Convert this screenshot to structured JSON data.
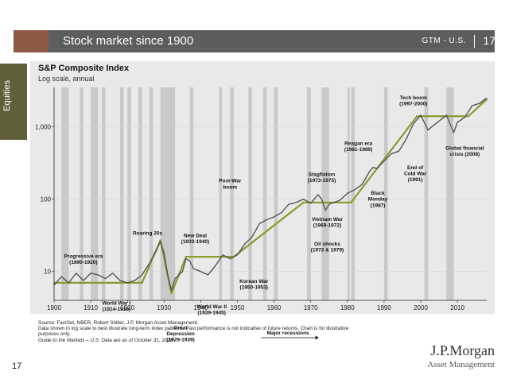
{
  "header": {
    "title": "Stock market since 1900",
    "tag": "GTM - U.S.",
    "page": "17"
  },
  "sidebar": {
    "label": "Equities"
  },
  "colors": {
    "accent": "#8c5a45",
    "trend": "#8c9a2c",
    "index_line": "#555555",
    "recession": "#c9c9c9",
    "panel": "#e9e9e9"
  },
  "chart_data": {
    "type": "line",
    "title": "S&P Composite Index",
    "subtitle": "Log scale, annual",
    "xlabel": "",
    "ylabel": "",
    "xlim": [
      1900,
      2018
    ],
    "ylim": [
      4,
      3500
    ],
    "yscale": "log",
    "xticks": [
      1900,
      1910,
      1920,
      1930,
      1940,
      1950,
      1960,
      1970,
      1980,
      1990,
      2000,
      2010
    ],
    "xtick_labels": [
      "1900",
      "1910",
      "1920",
      "1930",
      "1940",
      "1950",
      "1960",
      "1970",
      "1980",
      "1990",
      "2000",
      "2010"
    ],
    "yticks": [
      10,
      100,
      1000
    ],
    "ytick_labels": [
      "10",
      "100",
      "1,000"
    ],
    "recessions": [
      [
        1902,
        1904
      ],
      [
        1907,
        1908
      ],
      [
        1910,
        1912
      ],
      [
        1913,
        1914
      ],
      [
        1918,
        1919
      ],
      [
        1920,
        1921
      ],
      [
        1923,
        1924
      ],
      [
        1926,
        1927
      ],
      [
        1929,
        1933
      ],
      [
        1937,
        1938
      ],
      [
        1945,
        1945.8
      ],
      [
        1948,
        1949
      ],
      [
        1953,
        1954
      ],
      [
        1957,
        1958
      ],
      [
        1960,
        1961
      ],
      [
        1969,
        1970
      ],
      [
        1973,
        1975
      ],
      [
        1980,
        1980.6
      ],
      [
        1981,
        1982
      ],
      [
        1990,
        1991
      ],
      [
        2001,
        2002
      ],
      [
        2007,
        2009
      ]
    ],
    "series": [
      {
        "name": "S&P Composite Index",
        "x": [
          1900,
          1902,
          1904,
          1906,
          1908,
          1910,
          1912,
          1914,
          1916,
          1918,
          1920,
          1922,
          1924,
          1926,
          1928,
          1929,
          1930,
          1931,
          1932,
          1933,
          1935,
          1936,
          1937,
          1938,
          1940,
          1942,
          1944,
          1946,
          1948,
          1950,
          1952,
          1954,
          1956,
          1958,
          1960,
          1962,
          1964,
          1966,
          1968,
          1970,
          1972,
          1973,
          1974,
          1975,
          1978,
          1980,
          1982,
          1984,
          1986,
          1987,
          1988,
          1990,
          1992,
          1994,
          1996,
          1998,
          2000,
          2002,
          2003,
          2005,
          2007,
          2009,
          2010,
          2012,
          2014,
          2016,
          2018
        ],
        "y": [
          6.5,
          8.5,
          7,
          9.5,
          7.5,
          9.5,
          9,
          8,
          9.5,
          7.5,
          7,
          7.5,
          9,
          13,
          20,
          26,
          18,
          9,
          5.5,
          8,
          10,
          15,
          14,
          11,
          10,
          9,
          12,
          17,
          15,
          17,
          24,
          30,
          46,
          52,
          57,
          65,
          85,
          90,
          100,
          88,
          115,
          100,
          70,
          85,
          97,
          120,
          135,
          160,
          240,
          275,
          265,
          335,
          425,
          460,
          670,
          1100,
          1450,
          900,
          1000,
          1200,
          1450,
          830,
          1150,
          1350,
          1950,
          2100,
          2500
        ]
      }
    ],
    "trend_lines": [
      {
        "x": [
          1900,
          1924
        ],
        "y": [
          7,
          7
        ]
      },
      {
        "x": [
          1924,
          1929
        ],
        "y": [
          7,
          27
        ]
      },
      {
        "x": [
          1929,
          1932
        ],
        "y": [
          27,
          5
        ]
      },
      {
        "x": [
          1932,
          1936
        ],
        "y": [
          5,
          16
        ]
      },
      {
        "x": [
          1936,
          1949
        ],
        "y": [
          16,
          16
        ]
      },
      {
        "x": [
          1949,
          1968
        ],
        "y": [
          16,
          90
        ]
      },
      {
        "x": [
          1968,
          1981
        ],
        "y": [
          90,
          90
        ]
      },
      {
        "x": [
          1981,
          1999
        ],
        "y": [
          90,
          1400
        ]
      },
      {
        "x": [
          1999,
          2013
        ],
        "y": [
          1400,
          1400
        ]
      },
      {
        "x": [
          2013,
          2018
        ],
        "y": [
          1400,
          2400
        ]
      }
    ],
    "annotations": [
      {
        "lines": [
          "Progressive era",
          "(1890-1920)"
        ],
        "x": 1908,
        "y": 15.5
      },
      {
        "lines": [
          "Roaring 20s"
        ],
        "x": 1925.5,
        "y": 32
      },
      {
        "lines": [
          "World War I",
          "(1914-1918)"
        ],
        "x": 1917,
        "y": 3.5
      },
      {
        "lines": [
          "New Deal",
          "(1933-1940)"
        ],
        "x": 1938.5,
        "y": 30
      },
      {
        "lines": [
          "Great",
          "Depression",
          "(1929-1939)"
        ],
        "x": 1934.5,
        "y": 1.6
      },
      {
        "lines": [
          "World War II",
          "(1939-1945)"
        ],
        "x": 1943,
        "y": 3.1
      },
      {
        "lines": [
          "Post-War",
          "boom"
        ],
        "x": 1948,
        "y": 170
      },
      {
        "lines": [
          "Korean War",
          "(1950-1953)"
        ],
        "x": 1954.5,
        "y": 7
      },
      {
        "lines": [
          "Major recessions"
        ],
        "x": 1963.8,
        "y": 1.35
      },
      {
        "lines": [
          "Stagflation",
          "(1973-1975)"
        ],
        "x": 1973,
        "y": 210
      },
      {
        "lines": [
          "Vietnam War",
          "(1969-1972)"
        ],
        "x": 1974.5,
        "y": 50
      },
      {
        "lines": [
          "Oil shocks",
          "(1973 & 1979)"
        ],
        "x": 1974.5,
        "y": 23
      },
      {
        "lines": [
          "Reagan era",
          "(1981-1989)"
        ],
        "x": 1983,
        "y": 560
      },
      {
        "lines": [
          "Black",
          "Monday",
          "(1987)"
        ],
        "x": 1988.3,
        "y": 115
      },
      {
        "lines": [
          "Tech boom",
          "(1997-2000)"
        ],
        "x": 1998,
        "y": 2400
      },
      {
        "lines": [
          "End of",
          "Cold War",
          "(1991)"
        ],
        "x": 1998.5,
        "y": 260
      },
      {
        "lines": [
          "Global financial",
          "crisis (2008)"
        ],
        "x": 2012,
        "y": 480
      }
    ]
  },
  "footer": {
    "source": "Source: FactSet, NBER, Robert Shiller, J.P. Morgan Asset Management.",
    "note1": "Data shown in log scale to best illustrate long-term index patterns. Past performance is not indicative of future returns. Chart is for illustrative",
    "note2": "purposes only.",
    "guide": "Guide to the Markets – U.S. Data are as of October 31, 2018.",
    "page": "17",
    "logo_line1": "J.P.Morgan",
    "logo_line2": "Asset Management"
  }
}
